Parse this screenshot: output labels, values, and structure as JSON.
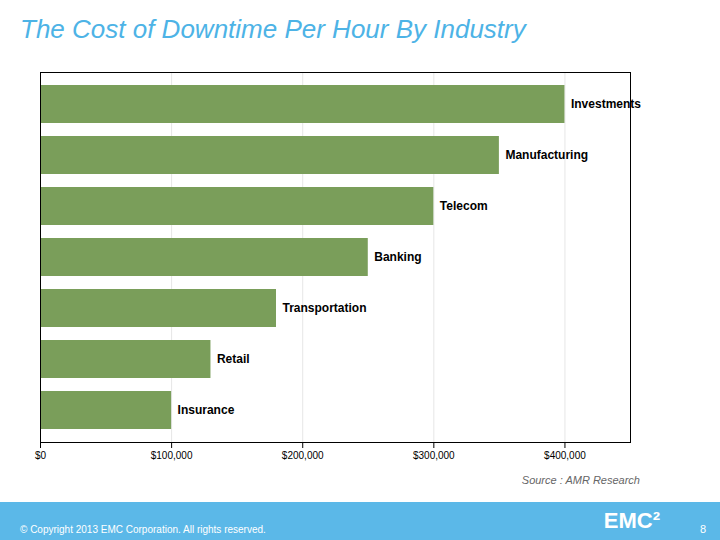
{
  "chart_data": {
    "type": "bar",
    "orientation": "horizontal",
    "title": "The Cost of Downtime Per Hour By Industry",
    "categories": [
      "Insurance",
      "Retail",
      "Transportation",
      "Banking",
      "Telecom",
      "Manufacturing",
      "Investments"
    ],
    "values": [
      100000,
      130000,
      180000,
      250000,
      300000,
      350000,
      400000
    ],
    "color": "#7a9e5a",
    "xlim": [
      0,
      450000
    ],
    "xticks": [
      {
        "value": 0,
        "label": "$0"
      },
      {
        "value": 100000,
        "label": "$100,000"
      },
      {
        "value": 200000,
        "label": "$200,000"
      },
      {
        "value": 300000,
        "label": "$300,000"
      },
      {
        "value": 400000,
        "label": "$400,000"
      }
    ],
    "grid": true,
    "tick_labels": "x",
    "annotations": [
      "Source : AMR Research",
      "EMC²",
      "© Copyright 2013 EMC Corporation. All rights reserved.",
      "8"
    ]
  }
}
